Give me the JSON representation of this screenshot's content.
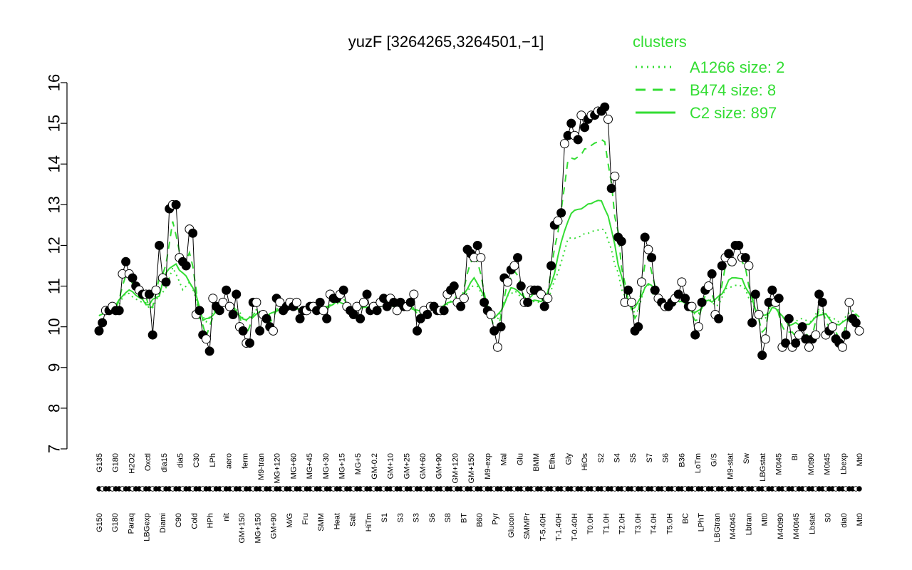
{
  "chart_data": {
    "type": "line",
    "title": "yuzF [3264265,3264501,−1]",
    "xlabel": "",
    "ylabel": "",
    "ylim": [
      7,
      16
    ],
    "yticks": [
      7,
      8,
      9,
      10,
      11,
      12,
      13,
      14,
      15,
      16
    ],
    "legend": {
      "title": "clusters",
      "placement": "top-right",
      "entries": [
        {
          "label": "A1266 size: 2",
          "style": "dotted"
        },
        {
          "label": "B474 size: 8",
          "style": "dashed"
        },
        {
          "label": "C2 size: 897",
          "style": "solid"
        }
      ]
    },
    "colors": {
      "series": "#33dd33",
      "points": "#000000",
      "axis": "#000000"
    },
    "xlabels_top": [
      "G135",
      "G180",
      "H2O2",
      "Oxctl",
      "dia15",
      "dia5",
      "C30",
      "LPh",
      "aero",
      "ferm",
      "M9-tran",
      "MG+120",
      "MG+60",
      "MG+45",
      "MG+30",
      "MG+15",
      "MG+5",
      "GM-0.2",
      "GM+10",
      "GM+25",
      "GM+60",
      "GM+90",
      "GM+120",
      "GM+150",
      "M9-exp",
      "Mal",
      "Glu",
      "BMM",
      "Etha",
      "Gly",
      "HiOs",
      "S2",
      "S4",
      "S5",
      "S7",
      "S6",
      "B36",
      "LoTm",
      "G/S",
      "M9-stat",
      "Sw",
      "LBGstat",
      "M0t45",
      "BI",
      "M0t90",
      "M0t45",
      "Lbexp",
      "Mt0"
    ],
    "xlabels_bottom": [
      "G150",
      "G180",
      "Paraq",
      "LBGexp",
      "Diami",
      "C90",
      "Cold",
      "HPh",
      "nit",
      "GM+150",
      "MG+150",
      "GM+90",
      "M/G",
      "Fru",
      "SMM",
      "Heat",
      "Salt",
      "HiTm",
      "S1",
      "S3",
      "S3",
      "S6",
      "S8",
      "BT",
      "B60",
      "Pyr",
      "Glucon",
      "SMMPr",
      "T-5.40H",
      "T-1.40H",
      "T-0.40H",
      "T0.0H",
      "T1.0H",
      "T2.0H",
      "T3.0H",
      "T4.0H",
      "T5.0H",
      "BC",
      "LPhT",
      "LBGtran",
      "M40t45",
      "Lbtran",
      "Mt0",
      "M40t90",
      "M40t45",
      "Lbstat",
      "S0",
      "dia0",
      "Mt0"
    ],
    "series": [
      {
        "name": "mean profile",
        "values": [
          9.9,
          10.1,
          10.4,
          10.4,
          10.5,
          10.4,
          10.4,
          11.3,
          11.6,
          11.3,
          11.2,
          11.0,
          10.9,
          10.8,
          10.8,
          10.8,
          9.8,
          10.9,
          12.0,
          11.2,
          11.1,
          12.9,
          13.0,
          13.0,
          11.7,
          11.6,
          11.5,
          12.4,
          12.3,
          10.3,
          10.4,
          9.8,
          9.7,
          9.4,
          10.7,
          10.5,
          10.4,
          10.6,
          10.9,
          10.5,
          10.3,
          10.8,
          10.0,
          9.9,
          9.6,
          9.6,
          10.6,
          10.6,
          9.9,
          10.3,
          10.2,
          10.0,
          9.9,
          10.7,
          10.6,
          10.4,
          10.5,
          10.6,
          10.5,
          10.6,
          10.2,
          10.4,
          10.4,
          10.5,
          10.5,
          10.4,
          10.6,
          10.4,
          10.2,
          10.8,
          10.7,
          10.7,
          10.8,
          10.9,
          10.5,
          10.4,
          10.3,
          10.5,
          10.2,
          10.6,
          10.8,
          10.4,
          10.5,
          10.4,
          10.6,
          10.7,
          10.5,
          10.7,
          10.6,
          10.4,
          10.6,
          10.5,
          10.5,
          10.6,
          10.8,
          9.9,
          10.2,
          10.4,
          10.3,
          10.5,
          10.5,
          10.4,
          10.4,
          10.4,
          10.8,
          10.9,
          11.0,
          10.6,
          10.5,
          10.7,
          11.9,
          11.8,
          11.7,
          12.0,
          11.7,
          10.6,
          10.4,
          10.3,
          9.9,
          9.5,
          10.0,
          11.2,
          11.1,
          11.4,
          11.5,
          11.7,
          11.0,
          10.6,
          10.6,
          10.9,
          10.9,
          10.9,
          10.8,
          10.5,
          10.7,
          11.5,
          12.5,
          12.6,
          12.8,
          14.5,
          14.7,
          15.0,
          14.7,
          14.6,
          15.2,
          14.9,
          15.1,
          15.2,
          15.2,
          15.3,
          15.3,
          15.4,
          15.1,
          13.4,
          13.7,
          12.2,
          12.1,
          10.6,
          10.9,
          10.6,
          9.9,
          10.0,
          11.1,
          12.2,
          11.9,
          11.7,
          10.9,
          10.7,
          10.6,
          10.5,
          10.5,
          10.6,
          10.7,
          10.8,
          11.1,
          10.7,
          10.5,
          10.5,
          9.8,
          10.0,
          10.6,
          10.9,
          11.0,
          11.3,
          10.3,
          10.2,
          11.5,
          11.7,
          11.8,
          11.6,
          12.0,
          12.0,
          11.7,
          11.7,
          11.5,
          10.1,
          10.8,
          10.3,
          9.3,
          9.7,
          10.6,
          10.9,
          10.6,
          10.7,
          9.5,
          9.6,
          10.2,
          9.5,
          9.6,
          9.8,
          10.0,
          9.7,
          9.5,
          9.7,
          9.8,
          10.8,
          10.6,
          9.8,
          9.9,
          10.0,
          9.7,
          9.6,
          9.5,
          9.8,
          10.6,
          10.2,
          10.1,
          9.9
        ]
      },
      {
        "name": "A1266",
        "style": "dotted"
      },
      {
        "name": "B474",
        "style": "dashed"
      },
      {
        "name": "C2",
        "style": "solid"
      }
    ]
  }
}
